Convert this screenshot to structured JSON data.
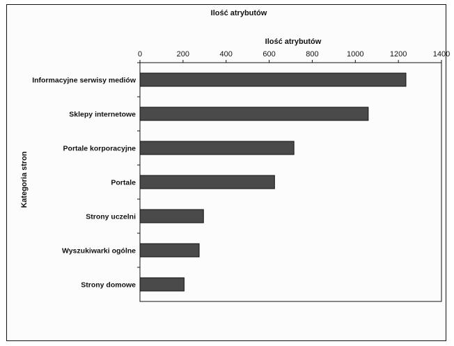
{
  "chart_data": {
    "type": "bar",
    "orientation": "horizontal",
    "title": "Ilość atrybutów",
    "xlabel": "Ilość atrybutów",
    "ylabel": "Kategoria stron",
    "xlim": [
      0,
      1400
    ],
    "xticks": [
      "0",
      "200",
      "400",
      "600",
      "800",
      "1000",
      "1200",
      "1400"
    ],
    "xaxis_position": "top",
    "grid": false,
    "legend": "none",
    "bar_color": "#4a4a4a",
    "categories": [
      "Informacyjne serwisy mediów",
      "Sklepy internetowe",
      "Portale korporacyjne",
      "Portale",
      "Strony uczelni",
      "Wyszukiwarki ogólne",
      "Strony domowe"
    ],
    "values": [
      1235,
      1060,
      715,
      625,
      295,
      275,
      205
    ]
  }
}
